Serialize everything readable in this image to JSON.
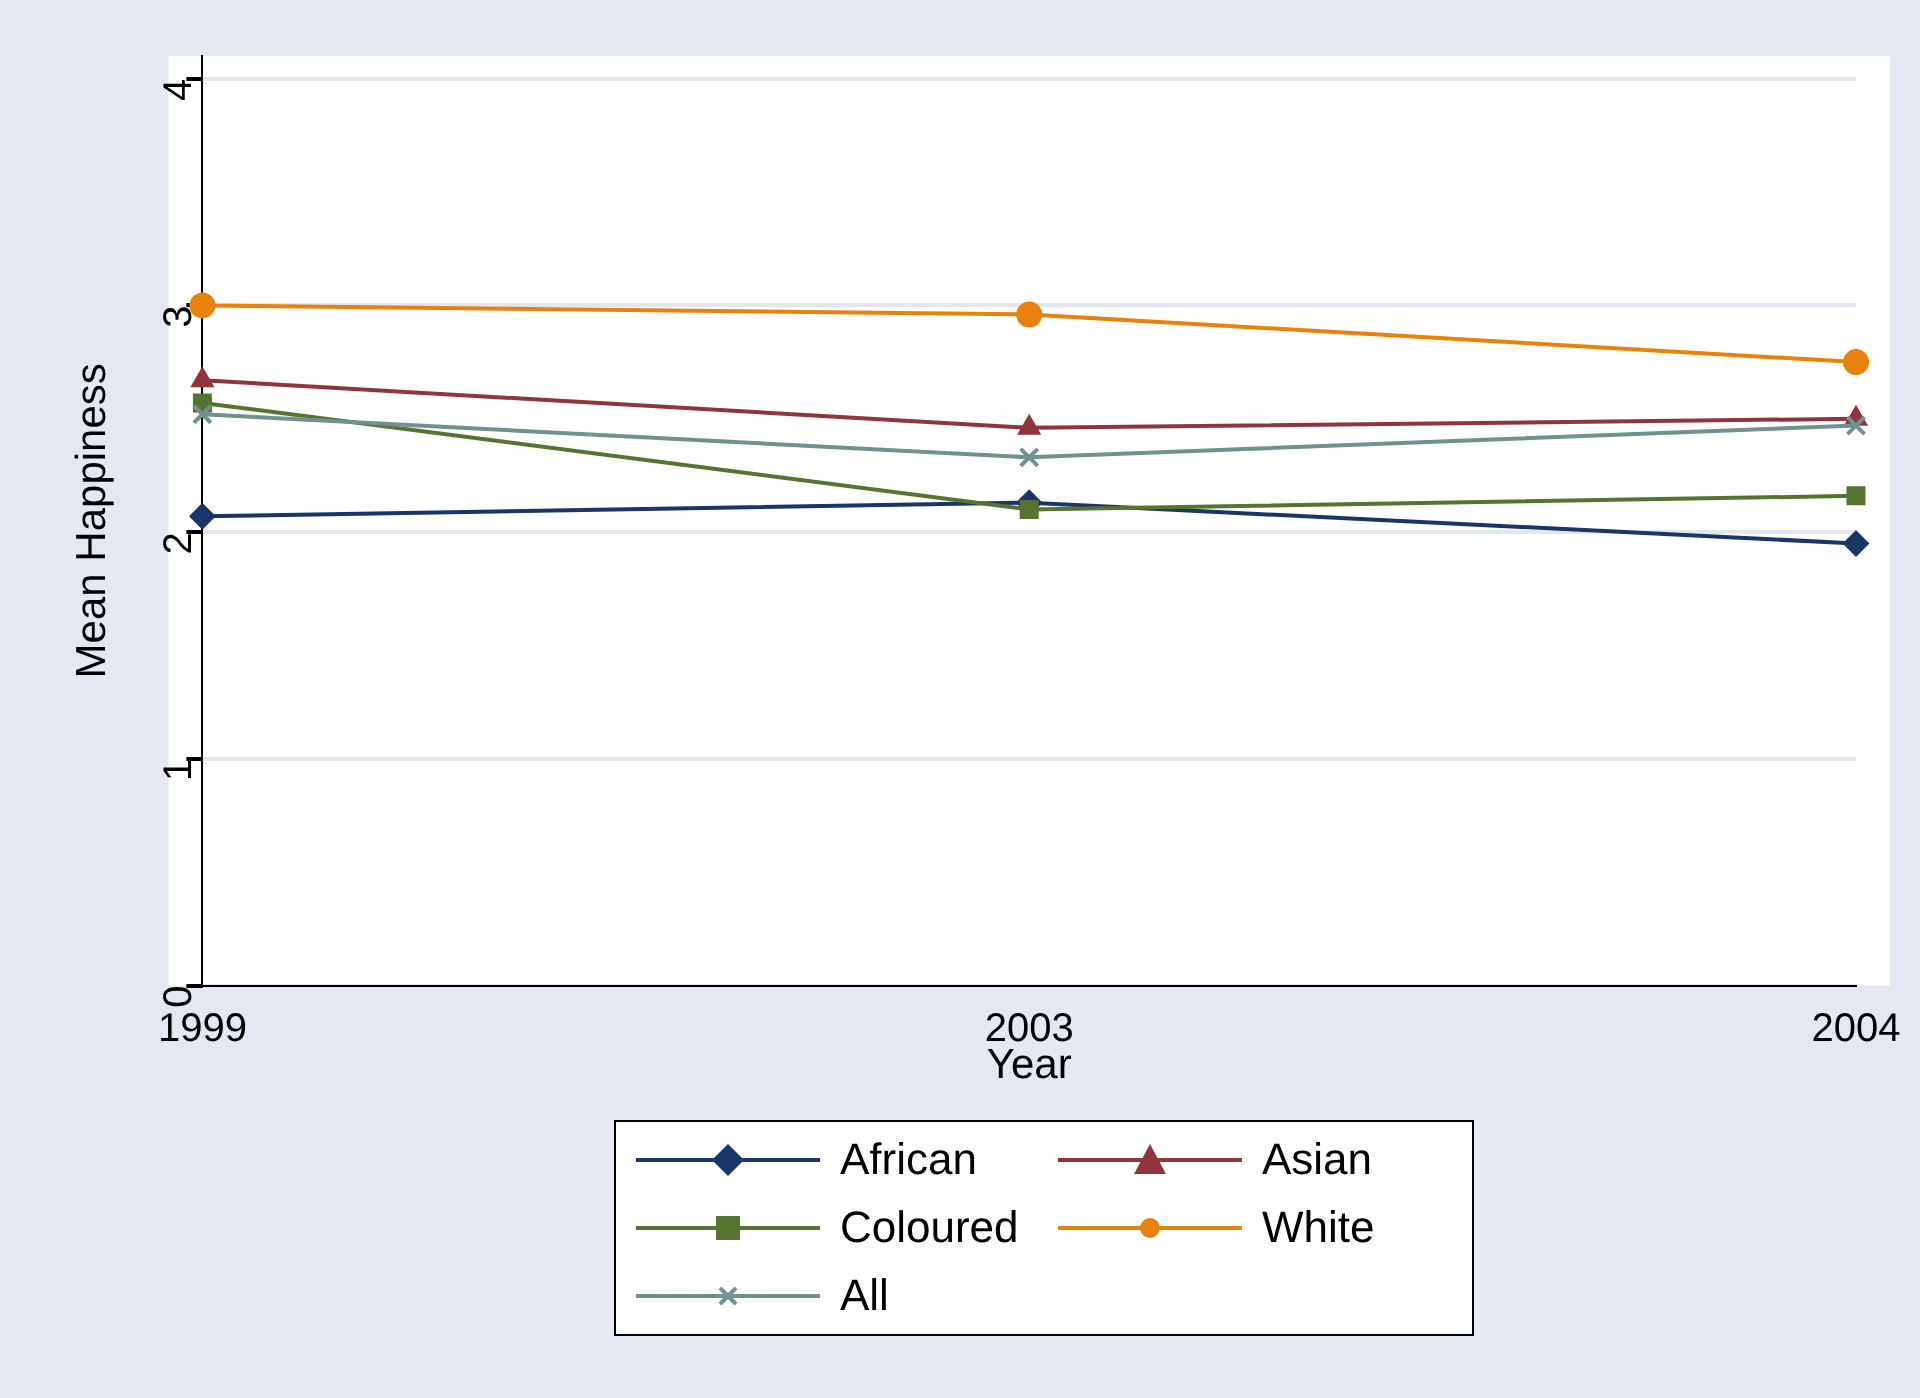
{
  "chart_data": {
    "type": "line",
    "xlabel": "Year",
    "ylabel": "Mean Happiness",
    "categories": [
      "1999",
      "2003",
      "2004"
    ],
    "series": [
      {
        "name": "African",
        "color": "#1a3668",
        "marker": "diamond",
        "values": [
          2.07,
          2.13,
          1.95
        ]
      },
      {
        "name": "Asian",
        "color": "#90353b",
        "marker": "triangle",
        "values": [
          2.67,
          2.46,
          2.5
        ]
      },
      {
        "name": "Coloured",
        "color": "#55752f",
        "marker": "square",
        "values": [
          2.57,
          2.1,
          2.16
        ]
      },
      {
        "name": "White",
        "color": "#e8820c",
        "marker": "circle",
        "values": [
          3.0,
          2.96,
          2.75
        ]
      },
      {
        "name": "All",
        "color": "#6f9190",
        "marker": "cross",
        "values": [
          2.52,
          2.33,
          2.47
        ]
      }
    ],
    "ylim": [
      0,
      4.1
    ],
    "yticks": [
      0,
      1,
      2,
      3,
      4
    ],
    "grid": "y",
    "legend": "bottom",
    "line_style": "solid"
  }
}
